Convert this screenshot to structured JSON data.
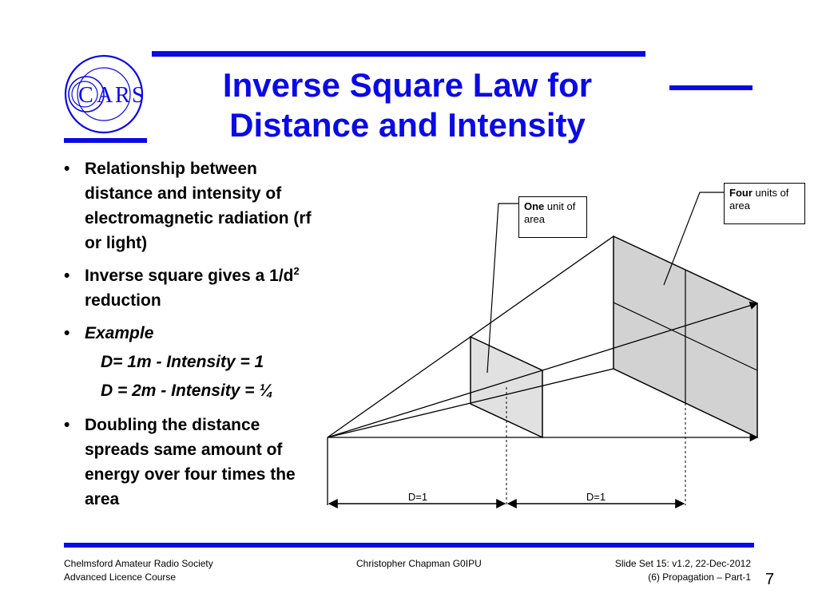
{
  "logo": {
    "letters": [
      "C",
      "A",
      "R",
      "S"
    ]
  },
  "title": {
    "line1": "Inverse Square Law for",
    "line2": "Distance and Intensity"
  },
  "bullets": {
    "b1": "Relationship between distance and intensity of electromagnetic radiation (rf or light)",
    "b2_pre": "Inverse square gives a 1/d",
    "b2_sup": "2",
    "b2_post": " reduction",
    "b3": "Example",
    "ex1": "D= 1m - Intensity = 1",
    "ex2": "D = 2m - Intensity = ¼",
    "b4": "Doubling the distance spreads same amount of energy over four times the area"
  },
  "diagram": {
    "callout_one_bold": "One",
    "callout_one_rest": " unit of area",
    "callout_four_bold": "Four",
    "callout_four_rest": " units of area",
    "dim1": "D=1",
    "dim2": "D=1"
  },
  "footer": {
    "left1": "Chelmsford Amateur Radio Society",
    "left2": "Advanced Licence Course",
    "center": "Christopher Chapman G0IPU",
    "right1": "Slide Set 15:  v1.2,  22-Dec-2012",
    "right2": "(6) Propagation – Part-1",
    "page": "7"
  },
  "colors": {
    "accent": "#0a0ae6",
    "panel_small": "#e1e1e1",
    "panel_large": "#d2d2d2"
  }
}
